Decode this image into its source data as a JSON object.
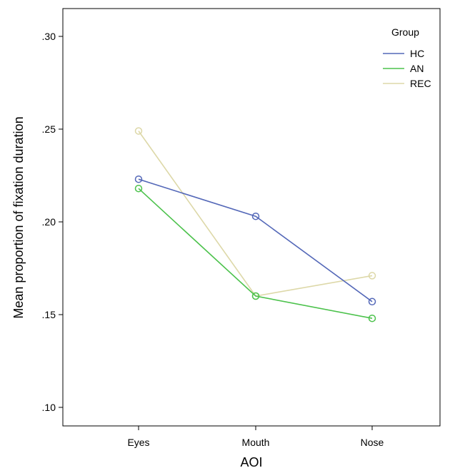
{
  "chart_data": {
    "type": "line",
    "xlabel": "AOI",
    "ylabel": "Mean proportion of fixation duration",
    "categories": [
      "Eyes",
      "Mouth",
      "Nose"
    ],
    "ylim": [
      0.09,
      0.315
    ],
    "yticks": [
      0.1,
      0.15,
      0.2,
      0.25,
      0.3
    ],
    "ytick_labels": [
      ".10",
      ".15",
      ".20",
      ".25",
      ".30"
    ],
    "grid": false,
    "legend": {
      "title": "Group",
      "placement": "top-right"
    },
    "series": [
      {
        "name": "HC",
        "color": "#5468b8",
        "values": [
          0.223,
          0.203,
          0.157
        ]
      },
      {
        "name": "AN",
        "color": "#4cc24c",
        "values": [
          0.218,
          0.16,
          0.148
        ]
      },
      {
        "name": "REC",
        "color": "#ddd8a8",
        "values": [
          0.249,
          0.16,
          0.171
        ]
      }
    ],
    "marker": "circle"
  }
}
